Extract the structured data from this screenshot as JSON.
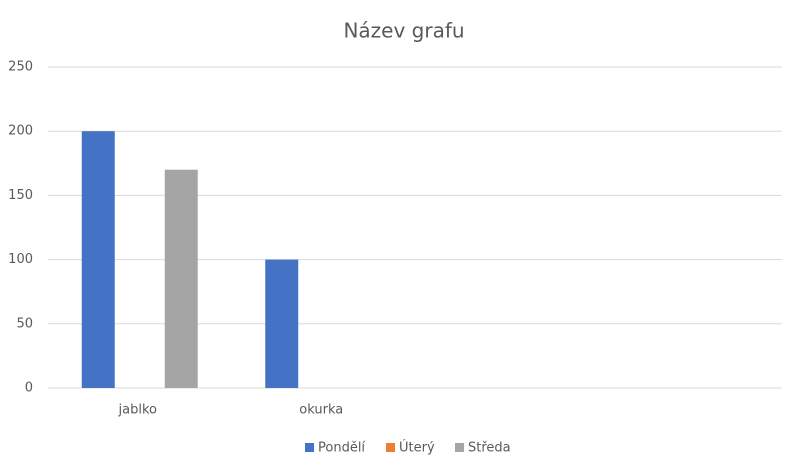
{
  "chart_data": {
    "type": "bar",
    "title": "Název grafu",
    "categories": [
      "jablko",
      "okurka",
      null,
      null
    ],
    "series": [
      {
        "name": "Pondělí",
        "color": "#4472c4",
        "values": [
          200,
          100,
          null,
          null
        ]
      },
      {
        "name": "Úterý",
        "color": "#ed7d31",
        "values": [
          null,
          null,
          null,
          null
        ]
      },
      {
        "name": "Středa",
        "color": "#a5a5a5",
        "values": [
          170,
          null,
          null,
          null
        ]
      }
    ],
    "ylim": [
      0,
      250
    ],
    "yticks": [
      0,
      50,
      100,
      150,
      200,
      250
    ],
    "grid": true,
    "legend": "bottom"
  }
}
